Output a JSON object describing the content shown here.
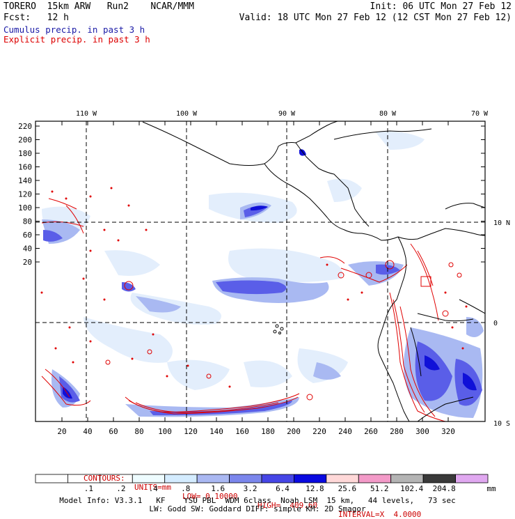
{
  "header": {
    "line1_left": "TORERO  15km ARW   Run2    NCAR/MMM",
    "line1_right": "Init: 06 UTC Mon 27 Feb 12",
    "line2_left": "Fcst:   12 h",
    "line2_right": "Valid: 18 UTC Mon 27 Feb 12 (12 CST Mon 27 Feb 12)"
  },
  "legend": {
    "cumulus": "Cumulus precip. in past 3 h",
    "cumulus_color": "#1a1aa6",
    "explicit": "Explicit precip. in past 3 h",
    "explicit_color": "#dd0000"
  },
  "map": {
    "top_lon_labels": [
      "110 W",
      "100 W",
      "90 W",
      "80 W",
      "70 W"
    ],
    "right_lat_labels": [
      "10 N",
      "0",
      "10 S"
    ],
    "left_y_ticks": [
      "220",
      "200",
      "180",
      "160",
      "140",
      "120",
      "100",
      "80",
      "60",
      "40",
      "20"
    ],
    "bottom_x_ticks": [
      "20",
      "40",
      "60",
      "80",
      "100",
      "120",
      "140",
      "160",
      "180",
      "200",
      "220",
      "240",
      "260",
      "280",
      "300",
      "320"
    ],
    "coastline_color": "#000000",
    "grid_color": "#000000",
    "contour_color": "#e00000",
    "shading_colors": [
      "#e6f2ff",
      "#b7cdf7",
      "#7f8ff0",
      "#3a3ae6",
      "#1010e0"
    ]
  },
  "contours_info": {
    "label": "CONTOURS:",
    "units": "UNITS=mm",
    "low": "LOW= 0.10000",
    "high": "HIGH=  409.60",
    "interval": "INTERVAL=X  4.0000"
  },
  "colorbar": {
    "labels": [
      ".1",
      ".2",
      ".4",
      ".8",
      "1.6",
      "3.2",
      "6.4",
      "12.8",
      "25.6",
      "51.2",
      "102.4",
      "204.8"
    ],
    "unit": "mm",
    "colors": [
      "#ffffff",
      "#ffffff",
      "#ffffff",
      "#eefcff",
      "#d4ecff",
      "#aab8f2",
      "#7b86ec",
      "#4646e6",
      "#0a0ae0",
      "#ffd8d8",
      "#f39ac8",
      "#b4b4b4",
      "#3a3a3a",
      "#e0a8f0"
    ]
  },
  "footer": {
    "line1": "Model Info: V3.3.1   KF    YSU PBL  WDM 6class  Noah LSM  15 km,   44 levels,   73 sec",
    "line2": "LW: Godd SW: Goddard DIFF: simple KM: 2D Smagor"
  }
}
